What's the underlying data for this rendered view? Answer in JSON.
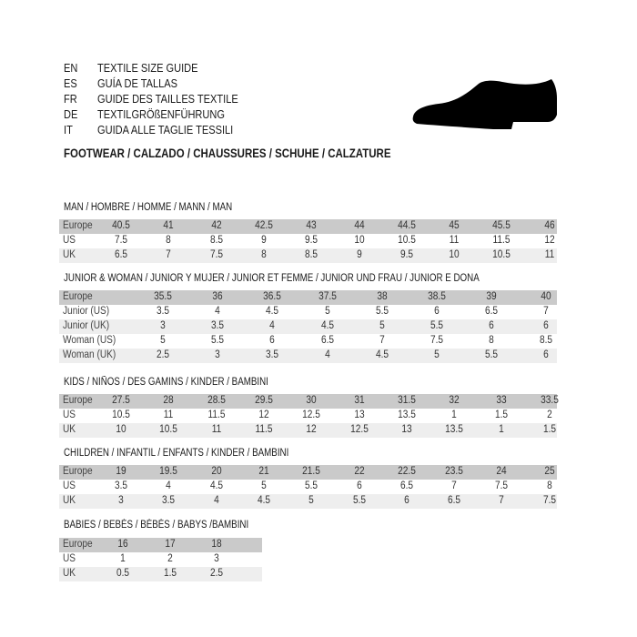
{
  "guide": [
    {
      "code": "EN",
      "text": "TEXTILE SIZE GUIDE"
    },
    {
      "code": "ES",
      "text": "GUÍA DE TALLAS"
    },
    {
      "code": "FR",
      "text": "GUIDE DES TAILLES TEXTILE"
    },
    {
      "code": "DE",
      "text": "TEXTILGRÖßENFÜHRUNG"
    },
    {
      "code": "IT",
      "text": "GUIDA ALLE TAGLIE TESSILI"
    }
  ],
  "footwear_title": "FOOTWEAR / CALZADO / CHAUSSURES / SCHUHE / CALZATURE",
  "shoe_icon": "shoe-icon",
  "colors": {
    "header_row": "#cacaca",
    "alt_row": "#eeeeee"
  },
  "sections": [
    {
      "title": "MAN / HOMBRE / HOMME / MANN / MAN",
      "rows": [
        {
          "label": "Europe",
          "values": [
            "40.5",
            "41",
            "42",
            "42.5",
            "43",
            "44",
            "44.5",
            "45",
            "45.5",
            "46"
          ]
        },
        {
          "label": "US",
          "values": [
            "7.5",
            "8",
            "8.5",
            "9",
            "9.5",
            "10",
            "10.5",
            "11",
            "11.5",
            "12"
          ]
        },
        {
          "label": "UK",
          "values": [
            "6.5",
            "7",
            "7.5",
            "8",
            "8.5",
            "9",
            "9.5",
            "10",
            "10.5",
            "11"
          ]
        }
      ]
    },
    {
      "title": "JUNIOR & WOMAN / JUNIOR Y MUJER / JUNIOR ET FEMME / JUNIOR UND FRAU / JUNIOR E DONA",
      "rows": [
        {
          "label": "Europe",
          "values": [
            "35.5",
            "36",
            "36.5",
            "37.5",
            "38",
            "38.5",
            "39",
            "40"
          ]
        },
        {
          "label": "Junior (US)",
          "values": [
            "3.5",
            "4",
            "4.5",
            "5",
            "5.5",
            "6",
            "6.5",
            "7"
          ]
        },
        {
          "label": "Junior (UK)",
          "values": [
            "3",
            "3.5",
            "4",
            "4.5",
            "5",
            "5.5",
            "6",
            "6"
          ]
        },
        {
          "label": "Woman (US)",
          "values": [
            "5",
            "5.5",
            "6",
            "6.5",
            "7",
            "7.5",
            "8",
            "8.5"
          ]
        },
        {
          "label": "Woman (UK)",
          "values": [
            "2.5",
            "3",
            "3.5",
            "4",
            "4.5",
            "5",
            "5.5",
            "6"
          ]
        }
      ]
    },
    {
      "title": "KIDS / NIÑOS / DES GAMINS / KINDER / BAMBINI",
      "rows": [
        {
          "label": "Europe",
          "values": [
            "27.5",
            "28",
            "28.5",
            "29.5",
            "30",
            "31",
            "31.5",
            "32",
            "33",
            "33.5"
          ]
        },
        {
          "label": "US",
          "values": [
            "10.5",
            "11",
            "11.5",
            "12",
            "12.5",
            "13",
            "13.5",
            "1",
            "1.5",
            "2"
          ]
        },
        {
          "label": "UK",
          "values": [
            "10",
            "10.5",
            "11",
            "11.5",
            "12",
            "12.5",
            "13",
            "13.5",
            "1",
            "1.5"
          ]
        }
      ]
    },
    {
      "title": "CHILDREN / INFANTIL / ENFANTS / KINDER / BAMBINI",
      "rows": [
        {
          "label": "Europe",
          "values": [
            "19",
            "19.5",
            "20",
            "21",
            "21.5",
            "22",
            "22.5",
            "23.5",
            "24",
            "25"
          ]
        },
        {
          "label": "US",
          "values": [
            "3.5",
            "4",
            "4.5",
            "5",
            "5.5",
            "6",
            "6.5",
            "7",
            "7.5",
            "8"
          ]
        },
        {
          "label": "UK",
          "values": [
            "3",
            "3.5",
            "4",
            "4.5",
            "5",
            "5.5",
            "6",
            "6.5",
            "7",
            "7.5"
          ]
        }
      ]
    },
    {
      "title": "BABIES  / BEBÉS / BÉBÉS / BABYS /BAMBINI",
      "rows": [
        {
          "label": "Europe",
          "values": [
            "16",
            "17",
            "18"
          ]
        },
        {
          "label": "US",
          "values": [
            "1",
            "2",
            "3"
          ]
        },
        {
          "label": "UK",
          "values": [
            "0.5",
            "1.5",
            "2.5"
          ]
        }
      ]
    }
  ]
}
